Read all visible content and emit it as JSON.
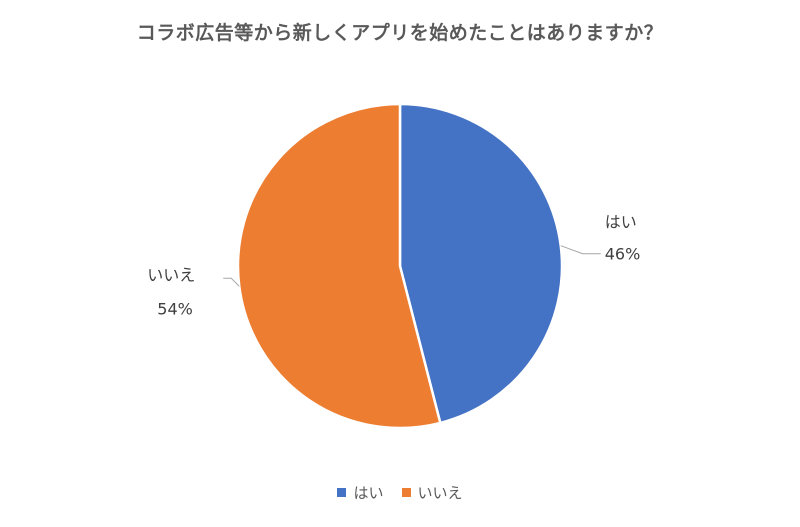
{
  "chart_data": {
    "type": "pie",
    "title": "コラボ広告等から新しくアプリを始めたことはありますか？",
    "categories": [
      "はい",
      "いいえ"
    ],
    "values": [
      46,
      54
    ],
    "value_labels": [
      "46%",
      "54%"
    ],
    "colors": [
      "#4472C4",
      "#ED7D31"
    ],
    "legend_position": "bottom",
    "start_angle": "12 o'clock, clockwise"
  }
}
